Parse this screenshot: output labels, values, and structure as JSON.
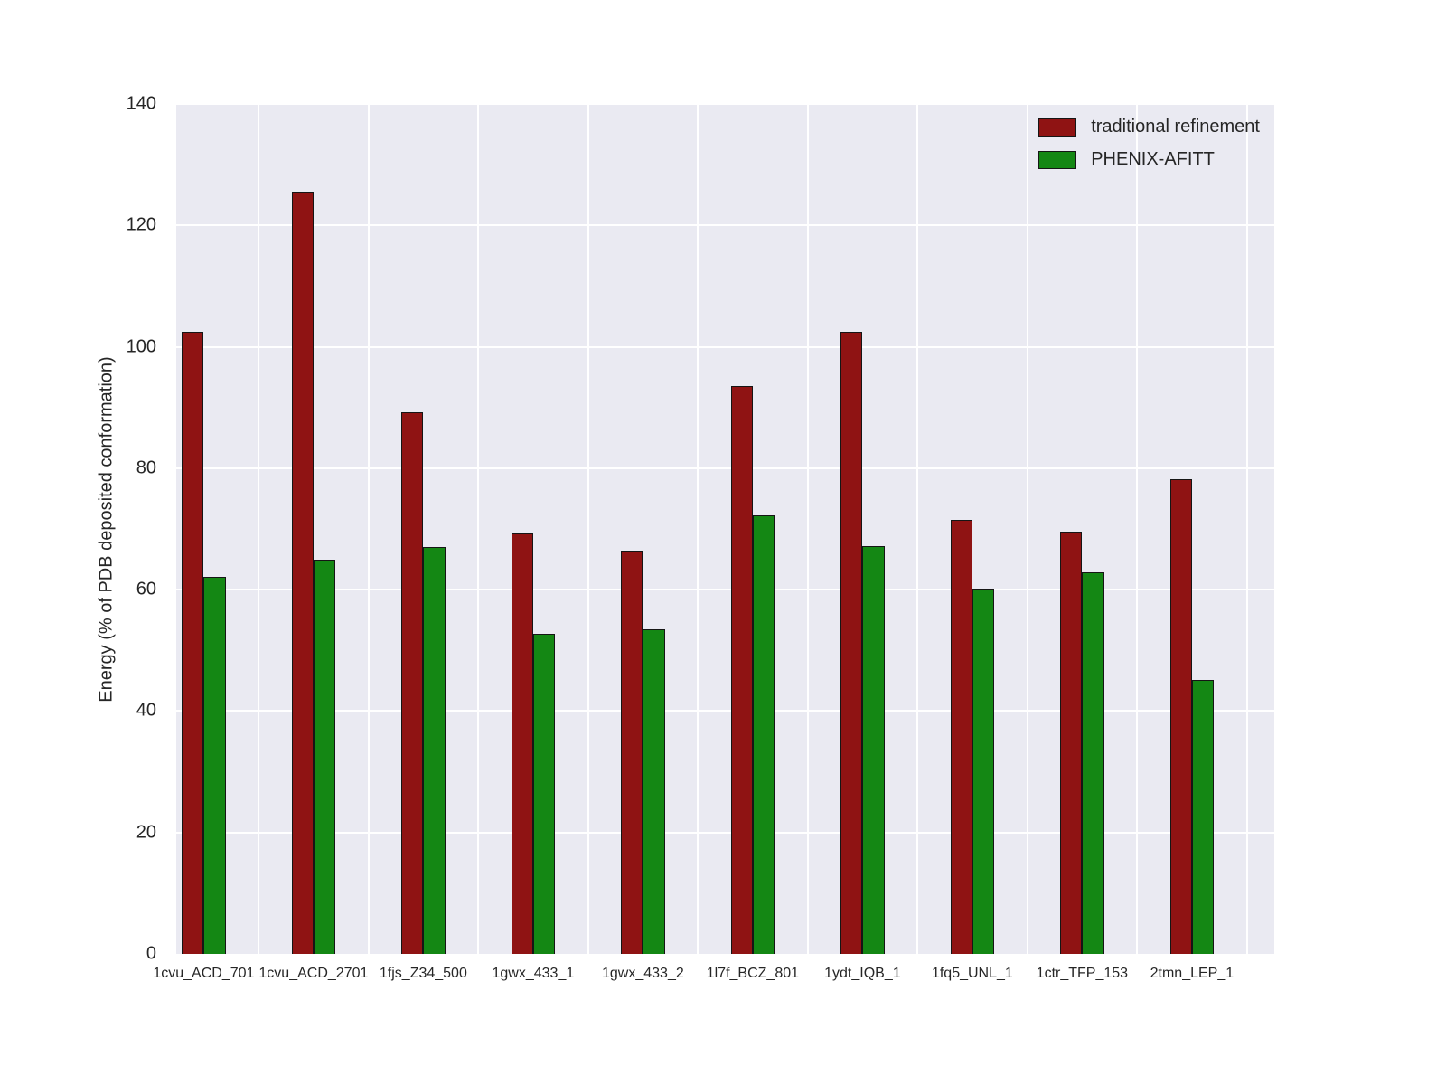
{
  "figure": {
    "background": "#ffffff",
    "plot_background": "#eaeaf2",
    "grid_color": "#ffffff"
  },
  "chart_data": {
    "type": "bar",
    "title": "",
    "xlabel": "",
    "ylabel": "Energy (% of PDB deposited conformation)",
    "ylim": [
      0,
      140
    ],
    "yticks": [
      0,
      20,
      40,
      60,
      80,
      100,
      120,
      140
    ],
    "grid": true,
    "legend_position": "upper right",
    "categories": [
      "1cvu_ACD_701",
      "1cvu_ACD_2701",
      "1fjs_Z34_500",
      "1gwx_433_1",
      "1gwx_433_2",
      "1l7f_BCZ_801",
      "1ydt_IQB_1",
      "1fq5_UNL_1",
      "1ctr_TFP_153",
      "2tmn_LEP_1"
    ],
    "series": [
      {
        "name": "traditional refinement",
        "color": "#8f1313",
        "values": [
          102.5,
          125.5,
          89.2,
          69.2,
          66.5,
          93.5,
          102.4,
          71.5,
          69.5,
          78.2
        ]
      },
      {
        "name": "PHENIX-AFITT",
        "color": "#148714",
        "values": [
          62.1,
          65.0,
          67.0,
          52.8,
          53.4,
          72.3,
          67.2,
          60.1,
          62.9,
          45.1
        ]
      }
    ]
  }
}
